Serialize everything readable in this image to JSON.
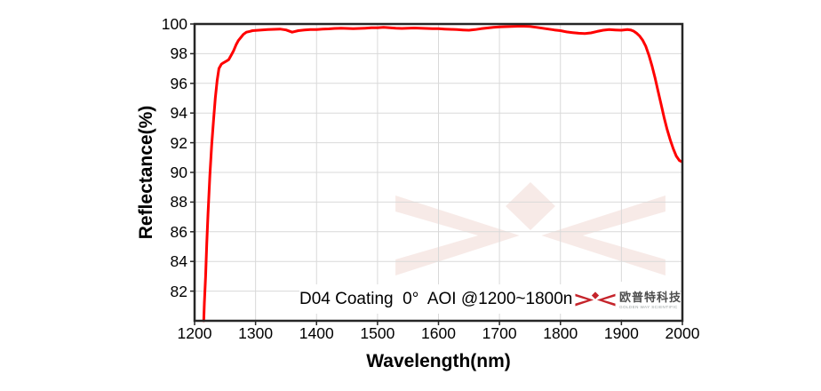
{
  "chart_data": {
    "type": "line",
    "xlabel": "Wavelength(nm)",
    "ylabel": "Reflectance(%)",
    "annotation": "D04 Coating  0°  AOI @1200~1800nm",
    "xlim": [
      1200,
      2000
    ],
    "ylim": [
      80,
      100
    ],
    "x_ticks": [
      1200,
      1300,
      1400,
      1500,
      1600,
      1700,
      1800,
      1900,
      2000
    ],
    "y_ticks": [
      82,
      84,
      86,
      88,
      90,
      92,
      94,
      96,
      98,
      100
    ],
    "grid": true,
    "legend_position": "none",
    "line_color": "#ff0000",
    "series": [
      {
        "name": "Reflectance",
        "x": [
          1215,
          1216,
          1218,
          1220,
          1222,
          1225,
          1228,
          1231,
          1234,
          1237,
          1240,
          1244,
          1248,
          1252,
          1256,
          1260,
          1264,
          1268,
          1272,
          1276,
          1280,
          1285,
          1290,
          1295,
          1300,
          1310,
          1320,
          1330,
          1340,
          1350,
          1360,
          1370,
          1380,
          1390,
          1400,
          1410,
          1420,
          1430,
          1440,
          1450,
          1460,
          1470,
          1480,
          1490,
          1500,
          1510,
          1520,
          1530,
          1540,
          1550,
          1560,
          1570,
          1580,
          1590,
          1600,
          1610,
          1620,
          1630,
          1640,
          1650,
          1660,
          1670,
          1680,
          1690,
          1700,
          1710,
          1720,
          1730,
          1740,
          1750,
          1760,
          1770,
          1780,
          1790,
          1800,
          1810,
          1820,
          1830,
          1840,
          1850,
          1860,
          1870,
          1880,
          1890,
          1900,
          1910,
          1915,
          1920,
          1925,
          1930,
          1935,
          1940,
          1945,
          1950,
          1955,
          1960,
          1965,
          1970,
          1975,
          1980,
          1985,
          1990,
          1995,
          2000
        ],
        "y": [
          80.0,
          81.2,
          83.0,
          85.2,
          87.2,
          89.8,
          91.8,
          93.5,
          95.0,
          96.2,
          97.0,
          97.3,
          97.4,
          97.5,
          97.6,
          97.9,
          98.2,
          98.6,
          98.9,
          99.1,
          99.3,
          99.45,
          99.5,
          99.55,
          99.57,
          99.6,
          99.62,
          99.64,
          99.66,
          99.6,
          99.45,
          99.55,
          99.6,
          99.62,
          99.63,
          99.65,
          99.67,
          99.7,
          99.71,
          99.7,
          99.68,
          99.7,
          99.72,
          99.74,
          99.75,
          99.77,
          99.75,
          99.72,
          99.7,
          99.72,
          99.73,
          99.72,
          99.7,
          99.68,
          99.68,
          99.66,
          99.64,
          99.62,
          99.6,
          99.58,
          99.62,
          99.68,
          99.73,
          99.77,
          99.8,
          99.82,
          99.84,
          99.85,
          99.85,
          99.83,
          99.78,
          99.72,
          99.66,
          99.6,
          99.55,
          99.47,
          99.42,
          99.38,
          99.36,
          99.4,
          99.5,
          99.58,
          99.62,
          99.6,
          99.58,
          99.62,
          99.6,
          99.52,
          99.38,
          99.18,
          98.9,
          98.5,
          97.9,
          97.2,
          96.4,
          95.5,
          94.6,
          93.7,
          92.9,
          92.2,
          91.6,
          91.1,
          90.8,
          90.7
        ]
      }
    ]
  },
  "branding": {
    "company_cn": "欧普特科技",
    "company_en": "GOLDEN WAY SCIENTIFIC",
    "logo_color": "#c5242b",
    "watermark_color": "#f7eae7"
  },
  "colors": {
    "curve": "#ff0000",
    "plot_border": "#262626",
    "gridline": "#d9d9d9",
    "text": "#000000"
  }
}
